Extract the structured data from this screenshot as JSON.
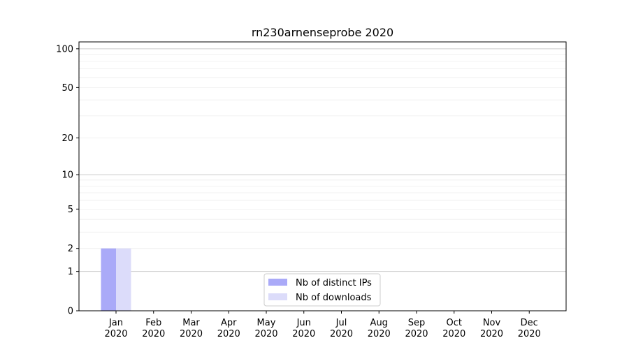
{
  "chart_data": {
    "type": "bar",
    "title": "rn230arnenseprobe 2020",
    "xlabel": "",
    "ylabel": "",
    "yscale": "log(1+y)",
    "ylim": [
      0,
      113
    ],
    "yticks": [
      0,
      1,
      2,
      5,
      10,
      20,
      50,
      100
    ],
    "ytick_labels": [
      "0",
      "1",
      "2",
      "5",
      "10",
      "20",
      "50",
      "100"
    ],
    "grid": "horizontal major and minor",
    "categories": [
      [
        "Jan",
        "2020"
      ],
      [
        "Feb",
        "2020"
      ],
      [
        "Mar",
        "2020"
      ],
      [
        "Apr",
        "2020"
      ],
      [
        "May",
        "2020"
      ],
      [
        "Jun",
        "2020"
      ],
      [
        "Jul",
        "2020"
      ],
      [
        "Aug",
        "2020"
      ],
      [
        "Sep",
        "2020"
      ],
      [
        "Oct",
        "2020"
      ],
      [
        "Nov",
        "2020"
      ],
      [
        "Dec",
        "2020"
      ]
    ],
    "series": [
      {
        "name": "Nb of distinct IPs",
        "color": "#aaaaf8",
        "values": [
          2,
          0,
          0,
          0,
          0,
          0,
          0,
          0,
          0,
          0,
          0,
          0
        ]
      },
      {
        "name": "Nb of downloads",
        "color": "#dcdcfa",
        "values": [
          2,
          0,
          0,
          0,
          0,
          0,
          0,
          0,
          0,
          0,
          0,
          0
        ]
      }
    ],
    "legend": "bottom-center"
  }
}
